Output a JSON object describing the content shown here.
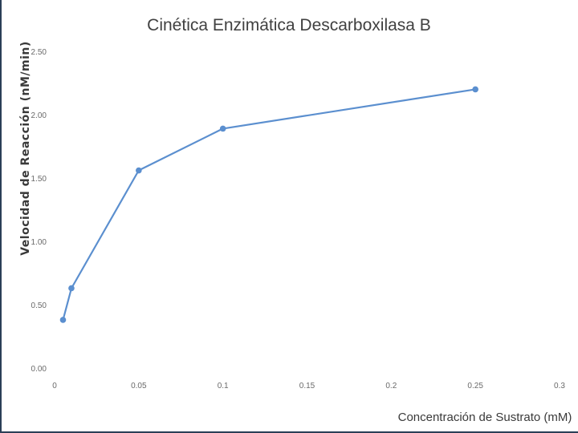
{
  "chart_data": {
    "type": "line",
    "title": "Cinética Enzimática Descarboxilasa B",
    "xlabel": "Concentración de Sustrato (mM)",
    "ylabel": "Velocidad de Reacción (nM/min)",
    "x_tick_labels": [
      "0",
      "0.05",
      "0.1",
      "0.15",
      "0.2",
      "0.25",
      "0.3"
    ],
    "y_tick_labels": [
      "0.00",
      "0.50",
      "1.00",
      "1.50",
      "2.00",
      "2.50"
    ],
    "xlim": [
      0,
      0.3
    ],
    "ylim": [
      0,
      2.5
    ],
    "grid": false,
    "series": [
      {
        "x": [
          0.005,
          0.01,
          0.05,
          0.1,
          0.25
        ],
        "values": [
          0.38,
          0.63,
          1.56,
          1.89,
          2.2
        ],
        "color": "#5b8fcf"
      }
    ]
  }
}
